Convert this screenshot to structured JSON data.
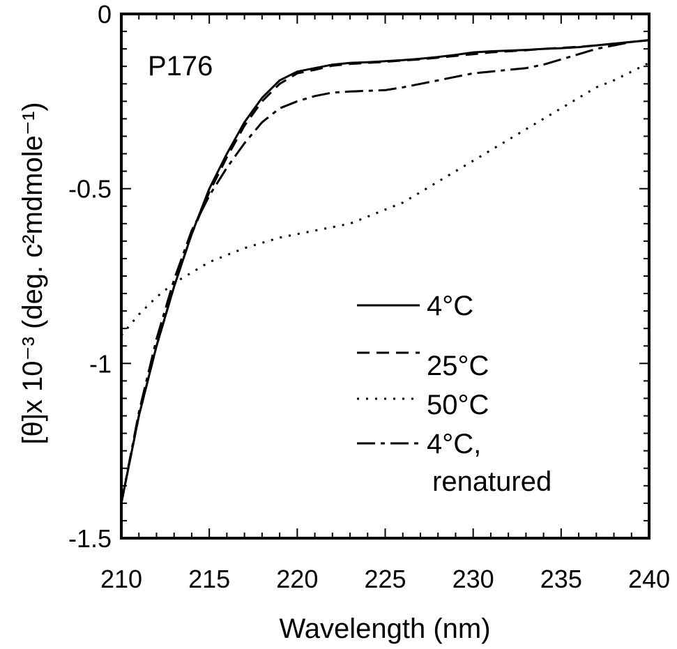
{
  "chart_data": {
    "type": "line",
    "panel_label": "P176",
    "xlabel": "Wavelength (nm)",
    "ylabel": "[θ]x 10⁻³ (deg. c²mdmole⁻¹)",
    "xlim": [
      210,
      240
    ],
    "ylim": [
      -1.5,
      0
    ],
    "x_ticks": [
      210,
      215,
      220,
      225,
      230,
      235,
      240
    ],
    "y_ticks": [
      0,
      -0.5,
      -1,
      -1.5
    ],
    "y_tick_labels": [
      "0",
      "-0.5",
      "-1",
      "-1.5"
    ],
    "grid": false,
    "legend_position": "right-lower-middle",
    "series": [
      {
        "name": "4°C",
        "style": "solid",
        "x": [
          210,
          211,
          212,
          213,
          214,
          215,
          216,
          217,
          218,
          219,
          220,
          221,
          222,
          223,
          224,
          225,
          226,
          227,
          228,
          229,
          230,
          231,
          232,
          233,
          234,
          235,
          236,
          237,
          238,
          239,
          240
        ],
        "y": [
          -1.4,
          -1.15,
          -0.95,
          -0.78,
          -0.63,
          -0.5,
          -0.4,
          -0.31,
          -0.24,
          -0.19,
          -0.165,
          -0.155,
          -0.145,
          -0.14,
          -0.138,
          -0.135,
          -0.132,
          -0.128,
          -0.123,
          -0.117,
          -0.11,
          -0.107,
          -0.105,
          -0.103,
          -0.1,
          -0.098,
          -0.095,
          -0.09,
          -0.085,
          -0.08,
          -0.075
        ]
      },
      {
        "name": "25°C",
        "style": "dashed",
        "x": [
          210,
          211,
          212,
          213,
          214,
          215,
          216,
          217,
          218,
          219,
          220,
          221,
          222,
          223,
          224,
          225,
          226,
          227,
          228,
          229,
          230,
          231,
          232,
          233,
          234,
          235,
          236,
          237,
          238,
          239,
          240
        ],
        "y": [
          -1.4,
          -1.15,
          -0.95,
          -0.78,
          -0.63,
          -0.51,
          -0.41,
          -0.32,
          -0.25,
          -0.2,
          -0.17,
          -0.16,
          -0.148,
          -0.143,
          -0.14,
          -0.137,
          -0.133,
          -0.13,
          -0.125,
          -0.12,
          -0.115,
          -0.11,
          -0.107,
          -0.104,
          -0.1,
          -0.097,
          -0.094,
          -0.09,
          -0.085,
          -0.08,
          -0.075
        ]
      },
      {
        "name": "50°C",
        "style": "dotted",
        "x": [
          210,
          211,
          212,
          213,
          214,
          215,
          216,
          217,
          218,
          219,
          220,
          221,
          222,
          223,
          224,
          225,
          226,
          227,
          228,
          229,
          230,
          231,
          232,
          233,
          234,
          235,
          236,
          237,
          238,
          239,
          240
        ],
        "y": [
          -0.92,
          -0.86,
          -0.81,
          -0.77,
          -0.74,
          -0.71,
          -0.69,
          -0.67,
          -0.655,
          -0.64,
          -0.63,
          -0.62,
          -0.61,
          -0.6,
          -0.58,
          -0.56,
          -0.54,
          -0.51,
          -0.48,
          -0.45,
          -0.42,
          -0.39,
          -0.36,
          -0.33,
          -0.3,
          -0.27,
          -0.24,
          -0.21,
          -0.19,
          -0.165,
          -0.14
        ]
      },
      {
        "name": "4°C, renatured",
        "style": "dash-dot",
        "x": [
          210,
          211,
          212,
          213,
          214,
          215,
          216,
          217,
          218,
          219,
          220,
          221,
          222,
          223,
          224,
          225,
          226,
          227,
          228,
          229,
          230,
          231,
          232,
          233,
          234,
          235,
          236,
          237,
          238,
          239,
          240
        ],
        "y": [
          -1.4,
          -1.14,
          -0.93,
          -0.76,
          -0.62,
          -0.52,
          -0.44,
          -0.37,
          -0.31,
          -0.27,
          -0.25,
          -0.235,
          -0.225,
          -0.222,
          -0.22,
          -0.218,
          -0.21,
          -0.2,
          -0.19,
          -0.18,
          -0.17,
          -0.165,
          -0.16,
          -0.155,
          -0.145,
          -0.13,
          -0.115,
          -0.1,
          -0.09,
          -0.08,
          -0.075
        ]
      }
    ]
  },
  "colors": {
    "line": "#000000",
    "background": "#ffffff"
  }
}
